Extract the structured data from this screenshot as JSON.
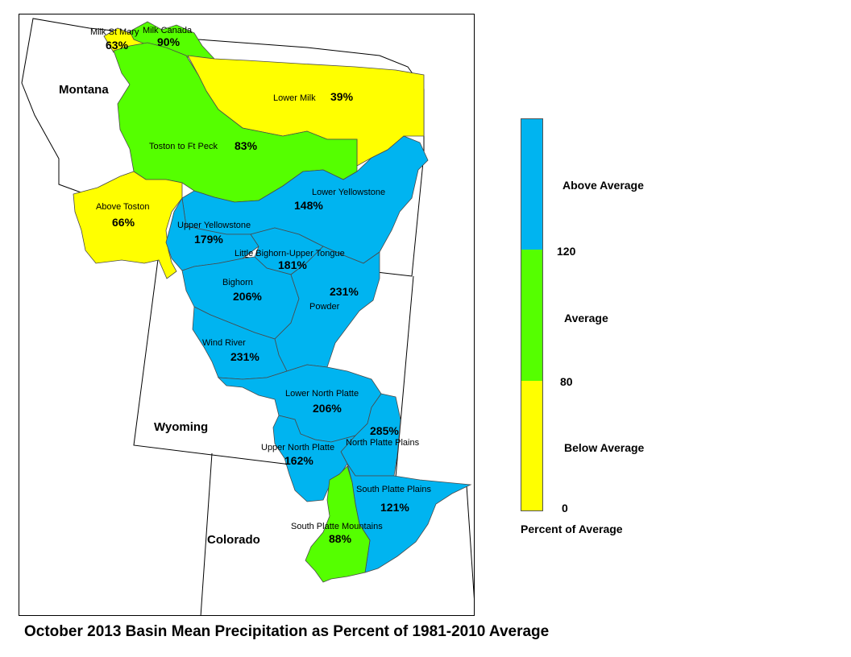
{
  "colors": {
    "above": "#00b4f0",
    "average": "#55ff00",
    "below": "#ffff00"
  },
  "states": [
    "Montana",
    "Wyoming",
    "Colorado"
  ],
  "basins": [
    {
      "name": "Milk St Mary",
      "pct": "63%",
      "category": "below"
    },
    {
      "name": "Milk Canada",
      "pct": "90%",
      "category": "average"
    },
    {
      "name": "Lower Milk",
      "pct": "39%",
      "category": "below"
    },
    {
      "name": "Toston to Ft Peck",
      "pct": "83%",
      "category": "average"
    },
    {
      "name": "Above Toston",
      "pct": "66%",
      "category": "below"
    },
    {
      "name": "Lower Yellowstone",
      "pct": "148%",
      "category": "above"
    },
    {
      "name": "Upper Yellowstone",
      "pct": "179%",
      "category": "above"
    },
    {
      "name": "Little Bighorn-Upper Tongue",
      "pct": "181%",
      "category": "above"
    },
    {
      "name": "Bighorn",
      "pct": "206%",
      "category": "above"
    },
    {
      "name": "Powder",
      "pct": "231%",
      "category": "above"
    },
    {
      "name": "Wind River",
      "pct": "231%",
      "category": "above"
    },
    {
      "name": "Lower North Platte",
      "pct": "206%",
      "category": "above"
    },
    {
      "name": "North Platte Plains",
      "pct": "285%",
      "category": "above"
    },
    {
      "name": "Upper North Platte",
      "pct": "162%",
      "category": "above"
    },
    {
      "name": "South Platte Plains",
      "pct": "121%",
      "category": "above"
    },
    {
      "name": "South Platte Mountains",
      "pct": "88%",
      "category": "average"
    }
  ],
  "legend": {
    "above_label": "Above Average",
    "average_label": "Average",
    "below_label": "Below Average",
    "tick_120": "120",
    "tick_80": "80",
    "tick_0": "0",
    "title": "Percent of Average"
  },
  "caption": "October 2013 Basin Mean Precipitation as Percent of 1981-2010 Average"
}
